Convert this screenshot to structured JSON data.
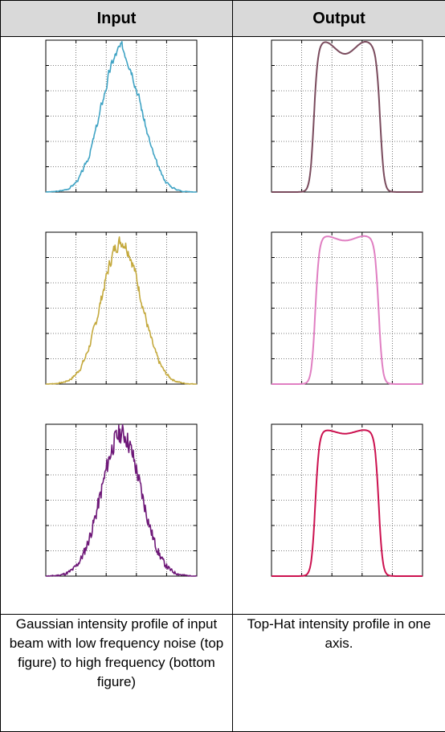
{
  "table": {
    "header_left": "Input",
    "header_right": "Output",
    "caption_left": "Gaussian intensity profile of input beam with low frequency noise (top figure) to high frequency (bottom figure)",
    "caption_right": "Top-Hat intensity profile in one axis."
  },
  "chart_data": [
    {
      "type": "line",
      "panel": "input-low-noise",
      "profile": "gaussian",
      "noise": "low frequency",
      "color": "#3fa3c4",
      "xlim": [
        0,
        1
      ],
      "ylim": [
        0,
        1
      ],
      "grid": true,
      "center": 0.5,
      "sigma": 0.13,
      "noise_amp": 0.08,
      "seed": 3
    },
    {
      "type": "line",
      "panel": "input-mid-noise",
      "profile": "gaussian",
      "noise": "medium frequency",
      "color": "#c4a93d",
      "xlim": [
        0,
        1
      ],
      "ylim": [
        0,
        1
      ],
      "grid": true,
      "center": 0.5,
      "sigma": 0.13,
      "noise_amp": 0.06,
      "seed": 7
    },
    {
      "type": "line",
      "panel": "input-high-noise",
      "profile": "gaussian",
      "noise": "high frequency",
      "color": "#6e1878",
      "xlim": [
        0,
        1
      ],
      "ylim": [
        0,
        1
      ],
      "grid": true,
      "center": 0.5,
      "sigma": 0.13,
      "noise_amp": 0.07,
      "seed": 11
    },
    {
      "type": "line",
      "panel": "output-1",
      "profile": "top-hat",
      "color": "#7a4b5d",
      "xlim": [
        0,
        1
      ],
      "ylim": [
        0,
        1
      ],
      "grid": true,
      "plateau": [
        0.28,
        0.72
      ],
      "level": 0.95,
      "ripple": 0.04
    },
    {
      "type": "line",
      "panel": "output-2",
      "profile": "top-hat",
      "color": "#e07fc2",
      "xlim": [
        0,
        1
      ],
      "ylim": [
        0,
        1
      ],
      "grid": true,
      "plateau": [
        0.29,
        0.71
      ],
      "level": 0.96,
      "ripple": 0.015
    },
    {
      "type": "line",
      "panel": "output-3",
      "profile": "top-hat",
      "color": "#cc1250",
      "xlim": [
        0,
        1
      ],
      "ylim": [
        0,
        1
      ],
      "grid": true,
      "plateau": [
        0.29,
        0.71
      ],
      "level": 0.95,
      "ripple": 0.012
    }
  ]
}
